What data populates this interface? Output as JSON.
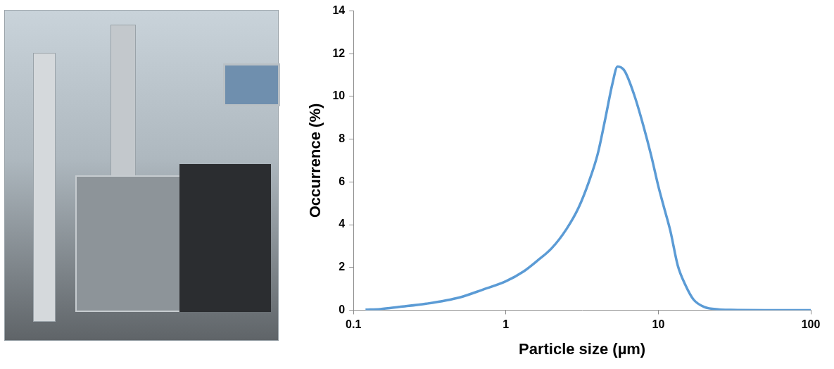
{
  "chart_data": {
    "type": "line",
    "x_label": "Particle size (µm)",
    "y_label": "Occurrence (%)",
    "x": [
      0.12,
      0.15,
      0.2,
      0.3,
      0.5,
      0.7,
      1,
      1.3,
      1.6,
      2,
      2.5,
      3,
      3.5,
      4,
      4.5,
      5,
      5.4,
      6,
      7,
      8,
      9,
      10,
      11,
      12,
      13.4,
      15,
      17,
      20,
      25,
      30,
      50,
      100
    ],
    "values": [
      0.02,
      0.05,
      0.15,
      0.3,
      0.6,
      0.95,
      1.35,
      1.8,
      2.3,
      2.9,
      3.8,
      4.8,
      6.0,
      7.3,
      9.0,
      10.6,
      11.4,
      11.2,
      10.0,
      8.6,
      7.2,
      5.8,
      4.7,
      3.7,
      2.1,
      1.2,
      0.5,
      0.15,
      0.03,
      0.01,
      0,
      0
    ],
    "color": "#5b9bd5",
    "xlim": [
      0.1,
      100
    ],
    "ylim": [
      0,
      14
    ],
    "xticks": [
      0.1,
      1,
      10,
      100
    ],
    "yticks": [
      0,
      2,
      4,
      6,
      8,
      10,
      12,
      14
    ],
    "log": "x",
    "grid": false
  }
}
